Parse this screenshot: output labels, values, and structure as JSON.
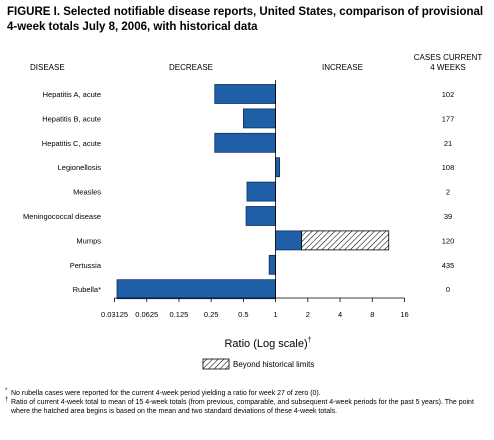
{
  "title": "FIGURE I. Selected notifiable disease reports, United States, comparison of provisional 4-week totals July 8, 2006, with historical data",
  "headers": {
    "disease": "DISEASE",
    "decrease": "DECREASE",
    "increase": "INCREASE",
    "cases_line1": "CASES CURRENT",
    "cases_line2": "4 WEEKS"
  },
  "chart_data": {
    "type": "bar",
    "orientation": "horizontal",
    "xscale": "log2",
    "xlabel": "Ratio (Log scale)",
    "xlabel_mark": "†",
    "xticks": [
      "0.03125",
      "0.0625",
      "0.125",
      "0.25",
      "0.5",
      "1",
      "2",
      "4",
      "8",
      "16"
    ],
    "xlim": [
      0.03125,
      16
    ],
    "baseline": 1,
    "categories": [
      "Hepatitis A, acute",
      "Hepatitis B, acute",
      "Hepatitis C, acute",
      "Legionellosis",
      "Measles",
      "Meningococcal disease",
      "Mumps",
      "Pertussia",
      "Rubella*"
    ],
    "values": [
      0.27,
      0.5,
      0.27,
      1.09,
      0.54,
      0.53,
      11.4,
      0.87,
      0.033
    ],
    "historical_limit": [
      null,
      null,
      null,
      null,
      null,
      null,
      1.75,
      null,
      null
    ],
    "cases_current_4_weeks": [
      "102",
      "177",
      "21",
      "108",
      "2",
      "39",
      "120",
      "435",
      "0"
    ],
    "legend": "Beyond historical limits",
    "colors": {
      "bar": "#1f5fa8",
      "bar_edge": "#0d2f63",
      "hatch": "#000000"
    }
  },
  "footnotes": [
    {
      "mark": "*",
      "text": "No rubella cases were reported for the current 4-week period yielding a ratio for week 27 of zero (0)."
    },
    {
      "mark": "†",
      "text": "Ratio of current 4-week total to mean of 15 4-week totals (from previous, comparable, and subsequent 4-week periods for the past 5 years). The point where the hatched area begins is based on the mean and two standard deviations of these 4-week totals."
    }
  ]
}
